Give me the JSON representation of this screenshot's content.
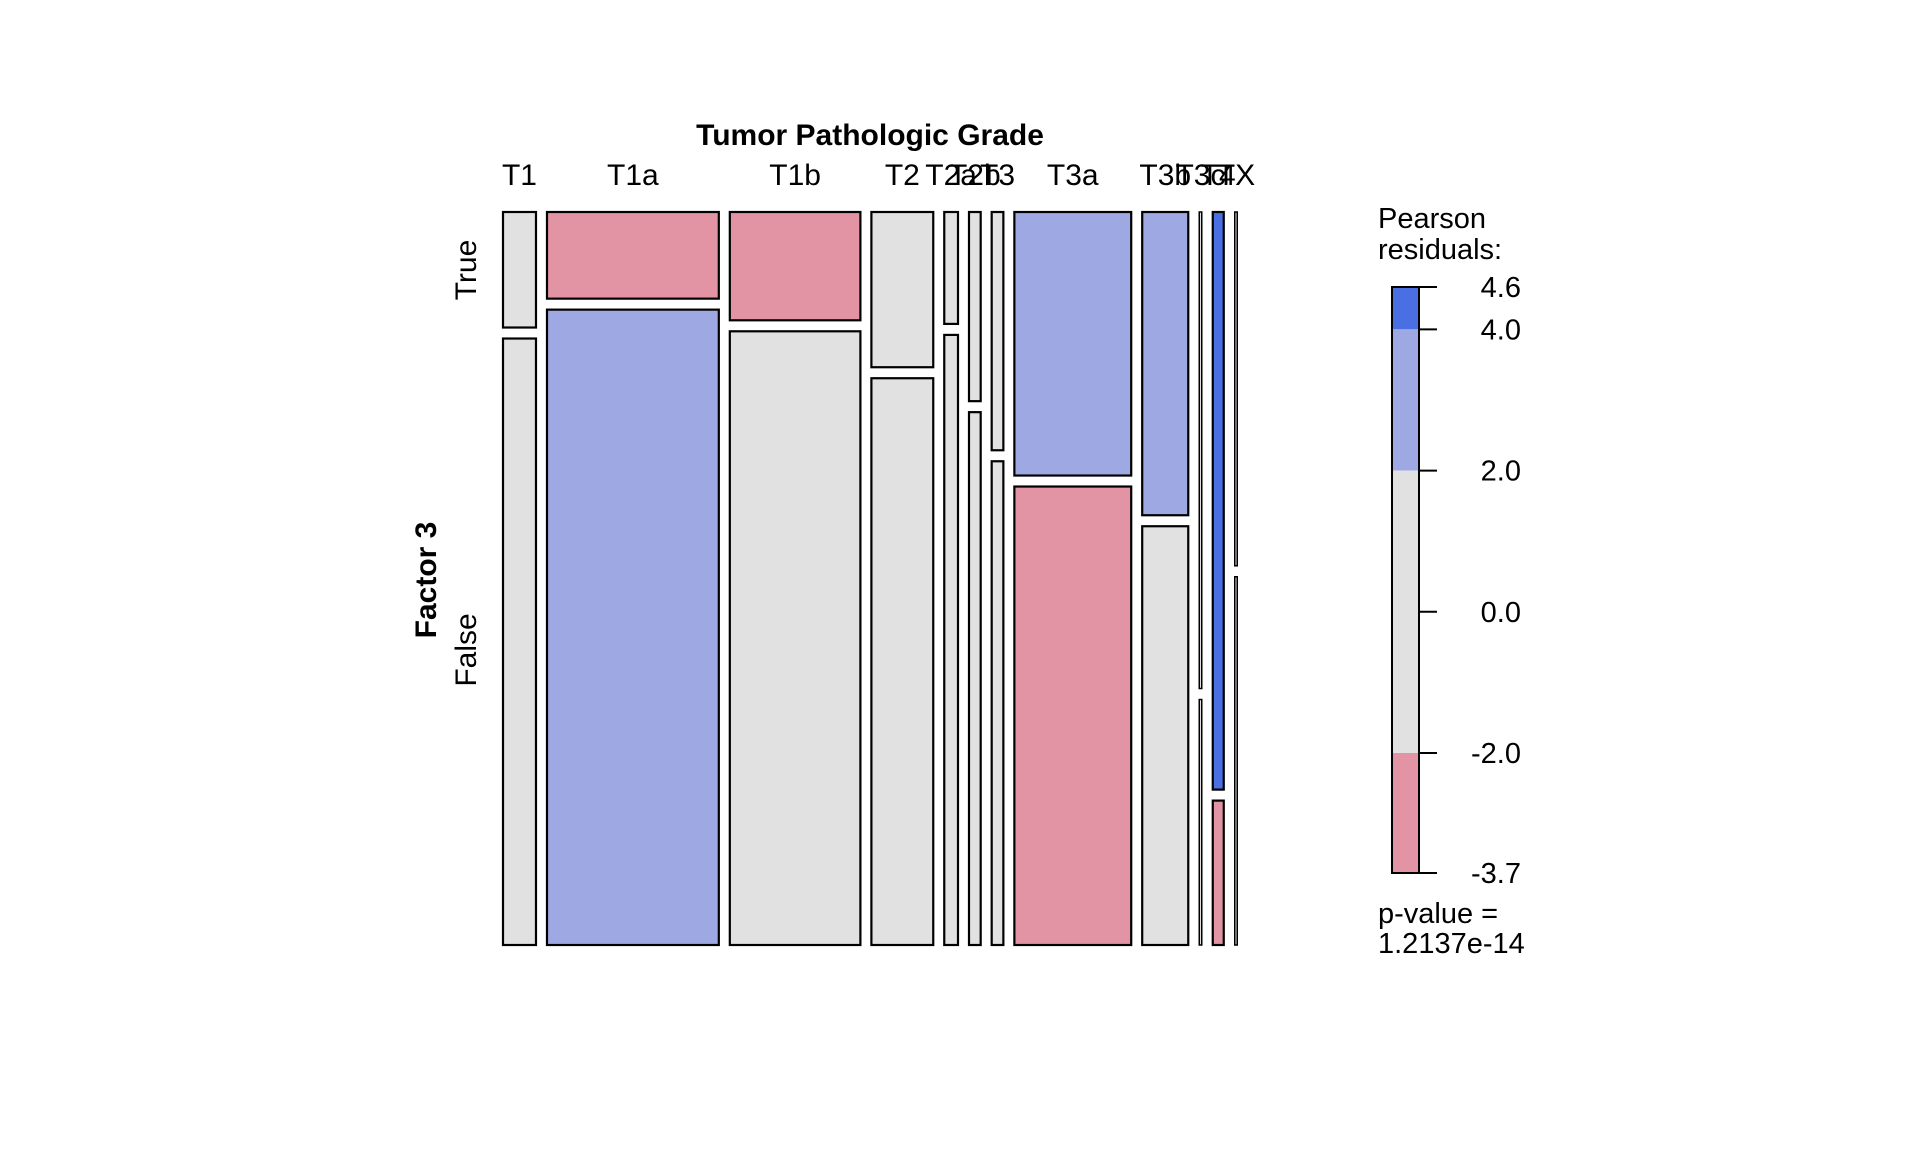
{
  "chart_data": {
    "type": "mosaic",
    "title": "Tumor Pathologic Grade",
    "xlabel": "Tumor Pathologic Grade",
    "ylabel": "Factor 3",
    "x_categories": [
      "T1",
      "T1a",
      "T1b",
      "T2",
      "T2a",
      "T2b",
      "T3",
      "T3a",
      "T3b",
      "T3c",
      "T4",
      "TX"
    ],
    "y_categories": [
      "True",
      "False"
    ],
    "column_widths_relative": [
      0.048,
      0.25,
      0.19,
      0.09,
      0.02,
      0.017,
      0.017,
      0.17,
      0.067,
      0.002,
      0.016,
      0.002
    ],
    "true_fraction": [
      0.16,
      0.12,
      0.15,
      0.215,
      0.155,
      0.262,
      0.33,
      0.365,
      0.42,
      0.66,
      0.8,
      0.49
    ],
    "residual_class": {
      "True": [
        "neutral",
        "neg-strong",
        "neg-strong",
        "neutral",
        "neutral",
        "neutral",
        "neutral",
        "pos-mid",
        "pos-mid",
        "neutral",
        "pos-high",
        "neutral"
      ],
      "False": [
        "neutral",
        "pos-mid",
        "neutral",
        "neutral",
        "neutral",
        "neutral",
        "neutral",
        "neg-strong",
        "neutral",
        "neutral",
        "neg-strong",
        "neutral"
      ]
    },
    "legend": {
      "title_line1": "Pearson",
      "title_line2": "residuals:",
      "ticks": [
        4.6,
        4.0,
        2.0,
        0.0,
        -2.0,
        -3.7
      ],
      "tick_labels": [
        "4.6",
        "4.0",
        "2.0",
        "0.0",
        "-2.0",
        "-3.7"
      ],
      "range": [
        -3.7,
        4.6
      ],
      "bands": [
        {
          "from": 4.0,
          "to": 4.6,
          "color": "#4a6fe3"
        },
        {
          "from": 2.0,
          "to": 4.0,
          "color": "#9ea9e3"
        },
        {
          "from": -2.0,
          "to": 2.0,
          "color": "#e1e1e1"
        },
        {
          "from": -3.7,
          "to": -2.0,
          "color": "#e294a5"
        }
      ],
      "pvalue_line1": "p-value =",
      "pvalue_line2": "1.2137e-14"
    },
    "colors": {
      "pos-high": "#4a6fe3",
      "pos-mid": "#9ea9e3",
      "neutral": "#e1e1e1",
      "neg-strong": "#e294a5"
    }
  }
}
